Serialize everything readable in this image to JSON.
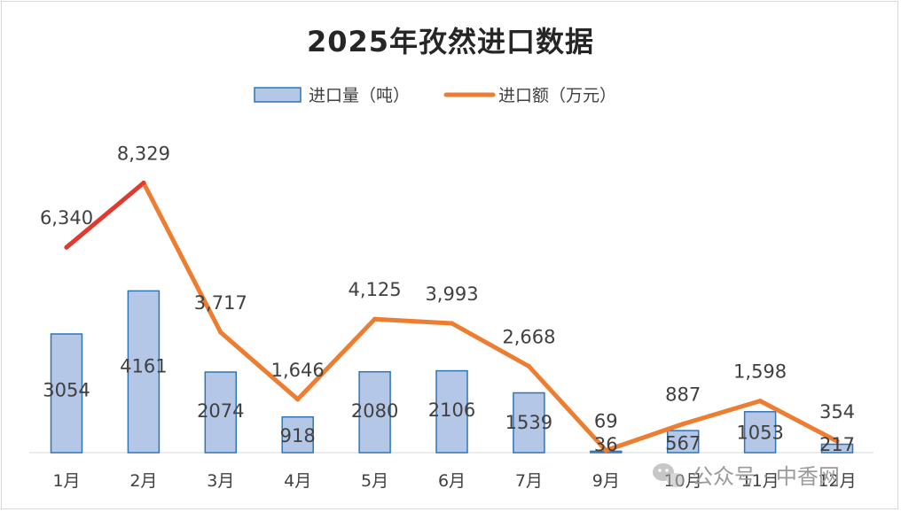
{
  "chart_data": {
    "type": "bar+line",
    "title": "2025年孜然进口数据",
    "categories": [
      "1月",
      "2月",
      "3月",
      "4月",
      "5月",
      "6月",
      "7月",
      "9月",
      "10月",
      "11月",
      "12月"
    ],
    "series": [
      {
        "name": "进口量（吨）",
        "kind": "bar",
        "color": "#b4c7e7",
        "border": "#2e75b6",
        "values": [
          3054,
          4161,
          2074,
          918,
          2080,
          2106,
          1539,
          36,
          567,
          1053,
          217
        ],
        "labels": [
          "3054",
          "4161",
          "2074",
          "918",
          "2080",
          "2106",
          "1539",
          "36",
          "567",
          "1053",
          "217"
        ]
      },
      {
        "name": "进口额（万元）",
        "kind": "line",
        "color": "#ed7d31",
        "highlight_color": "#e03a2f",
        "values": [
          6340,
          8329,
          3717,
          1646,
          4125,
          3993,
          2668,
          69,
          887,
          1598,
          354
        ],
        "labels": [
          "6,340",
          "8,329",
          "3,717",
          "1,646",
          "4,125",
          "3,993",
          "2,668",
          "69",
          "887",
          "1,598",
          "354"
        ]
      }
    ],
    "bar_axis_max": 8000,
    "line_axis_max": 9600,
    "legend": "top-center",
    "grid": false
  },
  "watermark": {
    "icon": "wechat-icon",
    "text": "公众号 · 中香网"
  }
}
